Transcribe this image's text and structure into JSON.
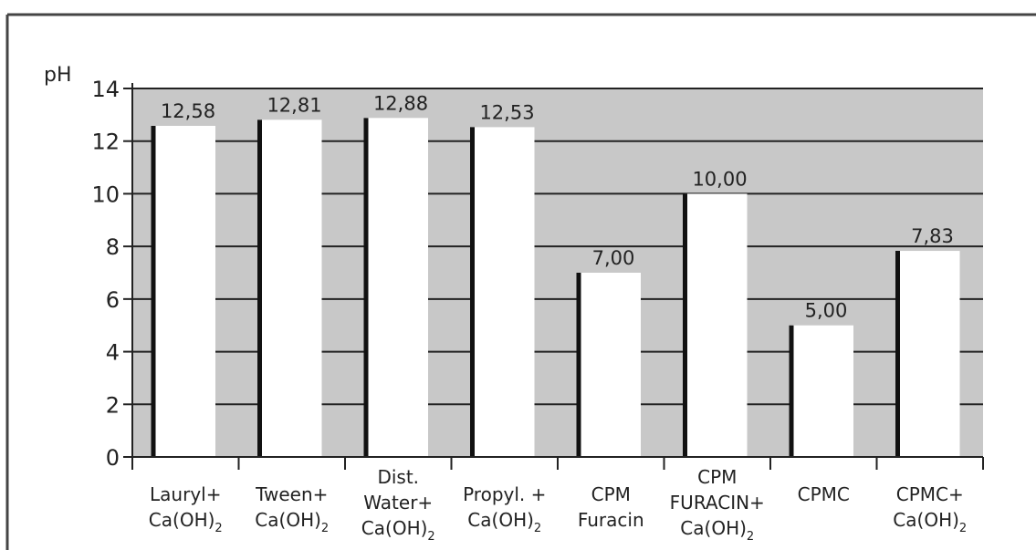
{
  "chart_data": {
    "type": "bar",
    "ylabel": "pH",
    "ylim": [
      0,
      14
    ],
    "yticks": [
      0,
      2,
      4,
      6,
      8,
      10,
      12,
      14
    ],
    "grid": true,
    "categories": [
      [
        "Lauryl+",
        "Ca(OH)",
        "2"
      ],
      [
        "Tween+",
        "Ca(OH)",
        "2"
      ],
      [
        "Dist.",
        "Water+",
        "Ca(OH)",
        "2"
      ],
      [
        "Propyl. +",
        "Ca(OH)",
        "2"
      ],
      [
        "CPM",
        "Furacin"
      ],
      [
        "CPM",
        "FURACIN+",
        "Ca(OH)",
        "2"
      ],
      [
        "CPMC"
      ],
      [
        "CPMC+",
        "Ca(OH)",
        "2"
      ]
    ],
    "values": [
      12.58,
      12.81,
      12.88,
      12.53,
      7.0,
      10.0,
      5.0,
      7.83
    ],
    "value_labels": [
      "12,58",
      "12,81",
      "12,88",
      "12,53",
      "7,00",
      "10,00",
      "5,00",
      "7,83"
    ],
    "colors": {
      "plot_background": "#c8c8c8",
      "bar_fill": "#ffffff",
      "bar_edge": "#111111",
      "grid": "#222222",
      "frame": "#333333"
    }
  }
}
